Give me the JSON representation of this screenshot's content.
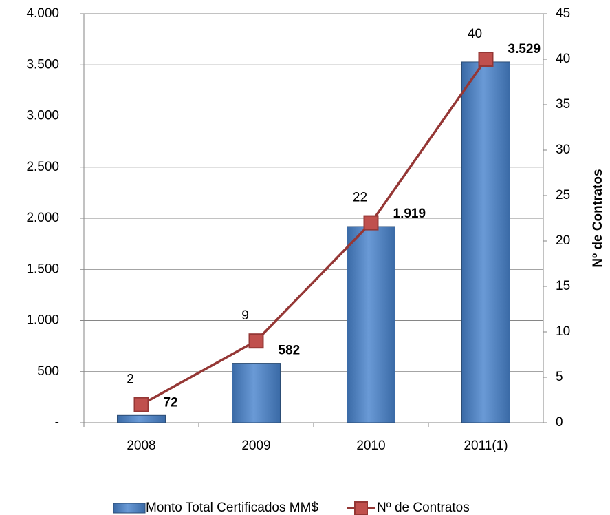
{
  "chart_data": {
    "type": "bar",
    "categories": [
      "2008",
      "2009",
      "2010",
      "2011(1)"
    ],
    "series": [
      {
        "name": "Monto Total Certificados MM$",
        "color": "#4f81bd",
        "values": [
          72,
          582,
          1919,
          3529
        ],
        "value_labels": [
          "72",
          "582",
          "1.919",
          "3.529"
        ]
      },
      {
        "name": "Nº de Contratos",
        "color": "#953735",
        "marker_color": "#c0504d",
        "axis": "y2",
        "values": [
          2,
          9,
          22,
          40
        ]
      }
    ],
    "ylim": [
      0,
      4000
    ],
    "yticks": [
      {
        "value": 0,
        "label": "-"
      },
      500,
      {
        "value": 1000,
        "label": "1.000"
      },
      {
        "value": 1500,
        "label": "1.500"
      },
      {
        "value": 2000,
        "label": "2.000"
      },
      {
        "value": 2500,
        "label": "2.500"
      },
      {
        "value": 3000,
        "label": "3.000"
      },
      {
        "value": 3500,
        "label": "3.500"
      },
      {
        "value": 4000,
        "label": "4.000"
      }
    ],
    "y2lim": [
      0,
      45
    ],
    "y2ticks": [
      0,
      5,
      10,
      15,
      20,
      25,
      30,
      35,
      40,
      45
    ],
    "y2label": "Nº de Contratos",
    "grid": true
  }
}
